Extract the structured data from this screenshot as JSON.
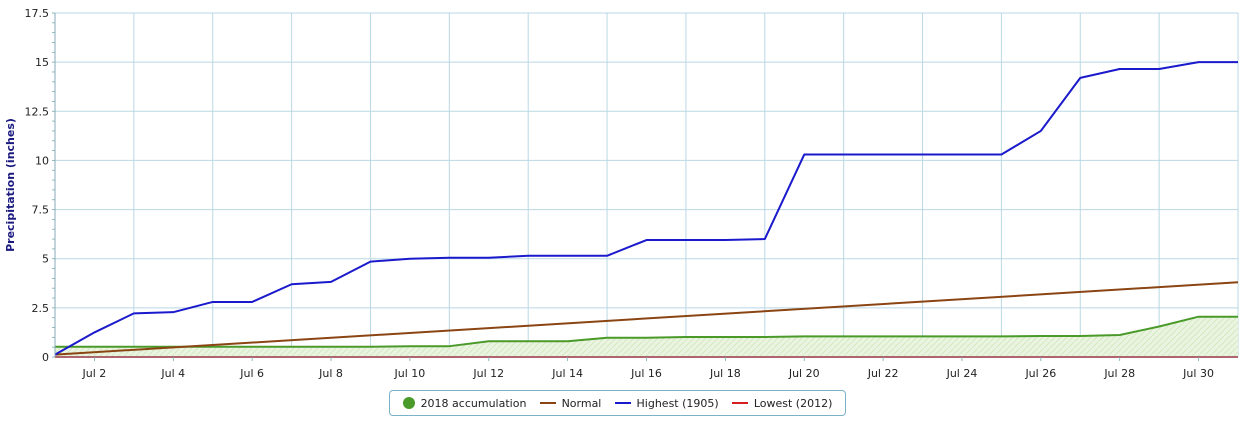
{
  "chart_data": {
    "type": "line",
    "ylabel": "Precipitation (inches)",
    "xlabel": "",
    "x_ticks": [
      "Jul 2",
      "Jul 4",
      "Jul 6",
      "Jul 8",
      "Jul 10",
      "Jul 12",
      "Jul 14",
      "Jul 16",
      "Jul 18",
      "Jul 20",
      "Jul 22",
      "Jul 24",
      "Jul 26",
      "Jul 28",
      "Jul 30"
    ],
    "x_tick_days": [
      2,
      4,
      6,
      8,
      10,
      12,
      14,
      16,
      18,
      20,
      22,
      24,
      26,
      28,
      30
    ],
    "xlim": [
      1,
      31
    ],
    "y_ticks": [
      "0",
      "2.5",
      "5",
      "7.5",
      "10",
      "12.5",
      "15",
      "17.5"
    ],
    "ylim": [
      0,
      17.5
    ],
    "grid": true,
    "legend_position": "bottom-center",
    "series": [
      {
        "name": "2018 accumulation",
        "kind": "area",
        "color": "#4a9a2a",
        "fill": "#eaf4e0",
        "days": [
          1,
          2,
          3,
          4,
          5,
          6,
          7,
          8,
          9,
          10,
          11,
          12,
          13,
          14,
          15,
          16,
          17,
          18,
          19,
          20,
          21,
          22,
          23,
          24,
          25,
          26,
          27,
          28,
          29,
          30,
          31
        ],
        "values": [
          0.52,
          0.52,
          0.52,
          0.52,
          0.52,
          0.52,
          0.52,
          0.52,
          0.52,
          0.55,
          0.55,
          0.8,
          0.8,
          0.8,
          0.98,
          0.98,
          1.02,
          1.02,
          1.02,
          1.05,
          1.05,
          1.05,
          1.05,
          1.05,
          1.05,
          1.07,
          1.07,
          1.12,
          1.55,
          2.05,
          2.05
        ]
      },
      {
        "name": "Normal",
        "kind": "line",
        "color": "#8b4513",
        "days": [
          1,
          31
        ],
        "values": [
          0.12,
          3.8
        ]
      },
      {
        "name": "Highest (1905)",
        "kind": "line",
        "color": "#1a1acc",
        "days": [
          1,
          2,
          3,
          4,
          5,
          6,
          7,
          8,
          9,
          10,
          11,
          12,
          13,
          14,
          15,
          16,
          17,
          18,
          19,
          20,
          21,
          22,
          23,
          24,
          25,
          26,
          27,
          28,
          29,
          30,
          31
        ],
        "values": [
          0.12,
          1.25,
          2.22,
          2.28,
          2.8,
          2.8,
          3.7,
          3.82,
          4.85,
          5.0,
          5.05,
          5.05,
          5.15,
          5.15,
          5.15,
          5.95,
          5.95,
          5.95,
          6.0,
          10.3,
          10.3,
          10.3,
          10.3,
          10.3,
          10.3,
          11.5,
          14.2,
          14.65,
          14.65,
          15.0,
          15.0
        ]
      },
      {
        "name": "Lowest (2012)",
        "kind": "line",
        "color": "#d42020",
        "days": [
          1,
          31
        ],
        "values": [
          0.0,
          0.0
        ]
      }
    ]
  },
  "legend": {
    "items": [
      {
        "label": "2018 accumulation",
        "color": "#4a9a2a",
        "marker": "dot"
      },
      {
        "label": "Normal",
        "color": "#8b4513",
        "marker": "line"
      },
      {
        "label": "Highest (1905)",
        "color": "#1a1acc",
        "marker": "line"
      },
      {
        "label": "Lowest (2012)",
        "color": "#d42020",
        "marker": "line"
      }
    ]
  }
}
